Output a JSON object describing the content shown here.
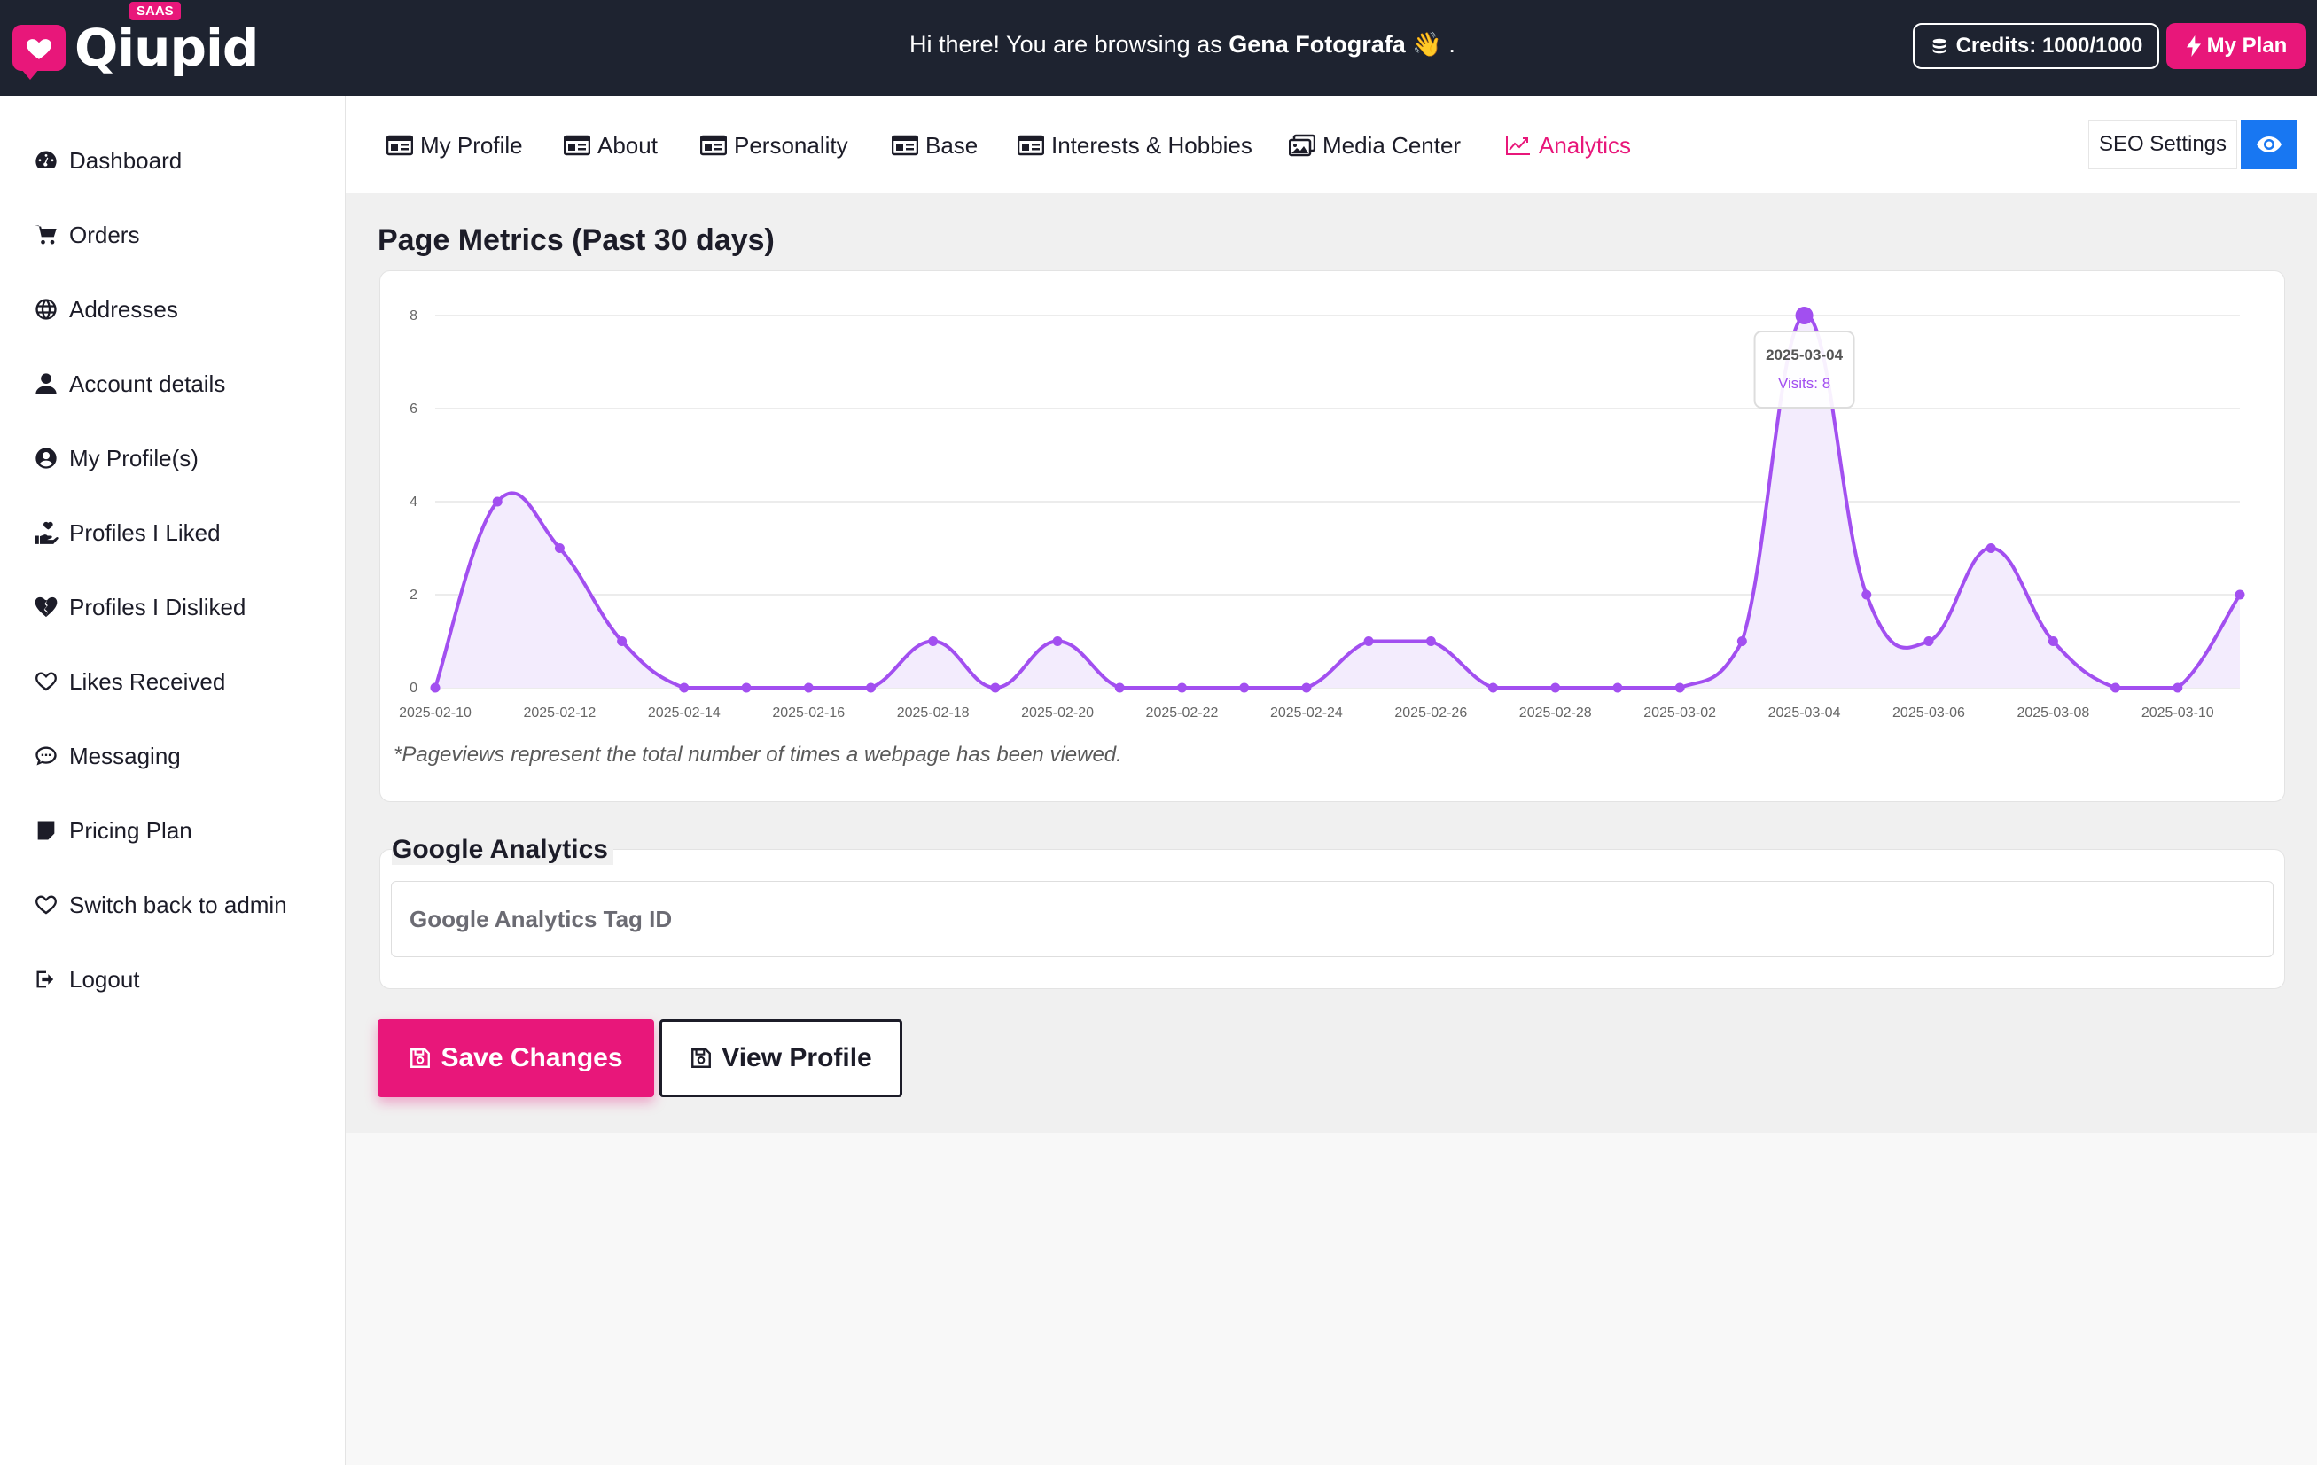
{
  "header": {
    "logo_text": "Qiupid",
    "logo_badge": "SAAS",
    "greeting_prefix": "Hi there! You are browsing as",
    "greeting_user": "Gena Fotografa",
    "greeting_suffix": "👋 .",
    "credits_label": "Credits: 1000/1000",
    "plan_label": "My Plan"
  },
  "sidebar": {
    "items": [
      {
        "label": "Dashboard",
        "icon": "dashboard-icon"
      },
      {
        "label": "Orders",
        "icon": "cart-icon"
      },
      {
        "label": "Addresses",
        "icon": "globe-icon"
      },
      {
        "label": "Account details",
        "icon": "user-icon"
      },
      {
        "label": "My Profile(s)",
        "icon": "user-circle-icon"
      },
      {
        "label": "Profiles I Liked",
        "icon": "hand-heart-icon"
      },
      {
        "label": "Profiles I Disliked",
        "icon": "broken-heart-icon"
      },
      {
        "label": "Likes Received",
        "icon": "heart-icon"
      },
      {
        "label": "Messaging",
        "icon": "chat-icon"
      },
      {
        "label": "Pricing Plan",
        "icon": "note-icon"
      },
      {
        "label": "Switch back to admin",
        "icon": "heart-outline-icon"
      },
      {
        "label": "Logout",
        "icon": "logout-icon"
      }
    ]
  },
  "tabs": [
    {
      "label": "My Profile",
      "active": false
    },
    {
      "label": "About",
      "active": false
    },
    {
      "label": "Personality",
      "active": false
    },
    {
      "label": "Base",
      "active": false
    },
    {
      "label": "Interests & Hobbies",
      "active": false
    },
    {
      "label": "Media Center",
      "active": false
    },
    {
      "label": "Analytics",
      "active": true
    }
  ],
  "seo_button": "SEO Settings",
  "metrics": {
    "title": "Page Metrics (Past 30 days)",
    "note": "*Pageviews represent the total number of times a webpage has been viewed.",
    "tooltip": {
      "date": "2025-03-04",
      "label": "Visits: 8"
    }
  },
  "chart_data": {
    "type": "area",
    "x": [
      "2025-02-10",
      "2025-02-11",
      "2025-02-12",
      "2025-02-13",
      "2025-02-14",
      "2025-02-15",
      "2025-02-16",
      "2025-02-17",
      "2025-02-18",
      "2025-02-19",
      "2025-02-20",
      "2025-02-21",
      "2025-02-22",
      "2025-02-23",
      "2025-02-24",
      "2025-02-25",
      "2025-02-26",
      "2025-02-27",
      "2025-02-28",
      "2025-03-01",
      "2025-03-02",
      "2025-03-03",
      "2025-03-04",
      "2025-03-05",
      "2025-03-06",
      "2025-03-07",
      "2025-03-08",
      "2025-03-09",
      "2025-03-10",
      "2025-03-11"
    ],
    "series": [
      {
        "values": [
          0,
          4,
          3,
          1,
          0,
          0,
          0,
          0,
          1,
          0,
          1,
          0,
          0,
          0,
          0,
          1,
          1,
          0,
          0,
          0,
          0,
          1,
          8,
          2,
          1,
          3,
          1,
          0,
          0,
          2
        ]
      }
    ],
    "x_tick_labels": [
      "2025-02-10",
      "2025-02-12",
      "2025-02-14",
      "2025-02-16",
      "2025-02-18",
      "2025-02-20",
      "2025-02-22",
      "2025-02-24",
      "2025-02-26",
      "2025-02-28",
      "2025-03-02",
      "2025-03-04",
      "2025-03-06",
      "2025-03-08",
      "2025-03-10"
    ],
    "y_ticks": [
      0,
      2,
      4,
      6,
      8
    ],
    "ylim": [
      0,
      8
    ],
    "grid": true,
    "line_color": "#a24ff0",
    "fill_color": "#f3ecfd"
  },
  "google_analytics": {
    "title": "Google Analytics",
    "placeholder": "Google Analytics Tag ID",
    "value": ""
  },
  "buttons": {
    "save": "Save Changes",
    "view": "View Profile"
  },
  "colors": {
    "accent": "#e8177a",
    "topbar": "#1e2330",
    "blue": "#1877f2"
  }
}
